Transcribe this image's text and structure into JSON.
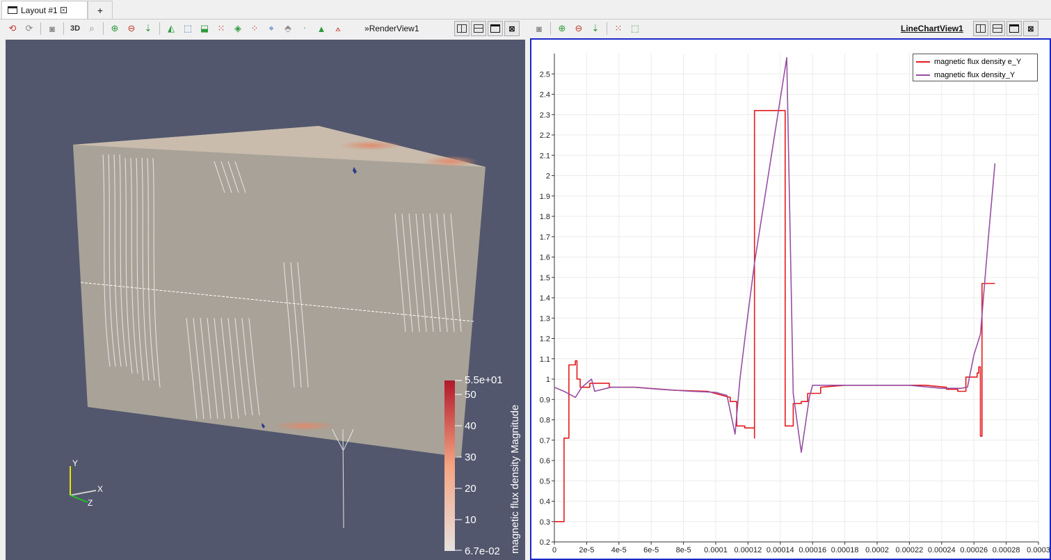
{
  "tabs": {
    "layout_label": "Layout #1",
    "add_label": "+"
  },
  "render_view": {
    "name": "RenderView1",
    "axes": {
      "x": "X",
      "y": "Y",
      "z": "Z"
    },
    "colorbar": {
      "title": "magnetic flux density Magnitude",
      "max_label": "5.5e+01",
      "min_label": "6.7e-02",
      "tick_labels": [
        "50",
        "40",
        "30",
        "20",
        "10"
      ],
      "colors": {
        "high": "#b2182b",
        "mid": "#f4a582",
        "low": "#e6e0de"
      }
    }
  },
  "line_chart_view": {
    "name": "LineChartView1"
  },
  "toolbar": {
    "threed_label": "3D",
    "more_label": "»"
  },
  "chart_data": {
    "type": "line",
    "x_ticks": [
      "0",
      "2e-5",
      "4e-5",
      "6e-5",
      "8e-5",
      "0.0001",
      "0.00012",
      "0.00014",
      "0.00016",
      "0.00018",
      "0.0002",
      "0.00022",
      "0.00024",
      "0.00026",
      "0.00028",
      "0.0003"
    ],
    "y_ticks": [
      "0.2",
      "0.3",
      "0.4",
      "0.5",
      "0.6",
      "0.7",
      "0.8",
      "0.9",
      "1",
      "1.1",
      "1.2",
      "1.3",
      "1.4",
      "1.5",
      "1.6",
      "1.7",
      "1.8",
      "1.9",
      "2",
      "2.1",
      "2.2",
      "2.3",
      "2.4",
      "2.5"
    ],
    "xlim": [
      0,
      0.0003
    ],
    "ylim": [
      0.2,
      2.6
    ],
    "grid": true,
    "legend_position": "top-right",
    "series": [
      {
        "name": "magnetic flux density e_Y",
        "color": "#e41a1c",
        "points": [
          [
            0,
            0.3
          ],
          [
            6e-06,
            0.3
          ],
          [
            6e-06,
            0.71
          ],
          [
            9e-06,
            0.71
          ],
          [
            9e-06,
            1.07
          ],
          [
            1.3e-05,
            1.07
          ],
          [
            1.3e-05,
            1.09
          ],
          [
            1.4e-05,
            1.09
          ],
          [
            1.4e-05,
            1.0
          ],
          [
            1.6e-05,
            1.0
          ],
          [
            1.6e-05,
            0.96
          ],
          [
            2.2e-05,
            0.96
          ],
          [
            2.2e-05,
            0.98
          ],
          [
            3.4e-05,
            0.98
          ],
          [
            3.4e-05,
            0.96
          ],
          [
            5e-05,
            0.96
          ],
          [
            7.5e-05,
            0.945
          ],
          [
            9.5e-05,
            0.94
          ],
          [
            0.000104,
            0.92
          ],
          [
            0.000109,
            0.91
          ],
          [
            0.000109,
            0.89
          ],
          [
            0.000113,
            0.89
          ],
          [
            0.000113,
            0.77
          ],
          [
            0.000118,
            0.77
          ],
          [
            0.000118,
            0.76
          ],
          [
            0.000124,
            0.76
          ],
          [
            0.000124,
            0.71
          ],
          [
            0.000124,
            2.32
          ],
          [
            0.000143,
            2.32
          ],
          [
            0.000143,
            0.77
          ],
          [
            0.000148,
            0.77
          ],
          [
            0.000148,
            0.88
          ],
          [
            0.000153,
            0.88
          ],
          [
            0.000153,
            0.89
          ],
          [
            0.000157,
            0.89
          ],
          [
            0.000157,
            0.93
          ],
          [
            0.000165,
            0.93
          ],
          [
            0.000165,
            0.96
          ],
          [
            0.00018,
            0.97
          ],
          [
            0.0002,
            0.97
          ],
          [
            0.00023,
            0.97
          ],
          [
            0.000243,
            0.96
          ],
          [
            0.000243,
            0.95
          ],
          [
            0.00025,
            0.95
          ],
          [
            0.00025,
            0.94
          ],
          [
            0.000255,
            0.94
          ],
          [
            0.000255,
            1.01
          ],
          [
            0.000262,
            1.01
          ],
          [
            0.000262,
            1.03
          ],
          [
            0.000263,
            1.03
          ],
          [
            0.000263,
            1.06
          ],
          [
            0.000264,
            1.06
          ],
          [
            0.000264,
            0.72
          ],
          [
            0.000265,
            0.72
          ],
          [
            0.000265,
            1.47
          ],
          [
            0.000273,
            1.47
          ]
        ]
      },
      {
        "name": "magnetic flux density_Y",
        "color": "#984ea3",
        "points": [
          [
            0,
            0.96
          ],
          [
            6e-06,
            0.94
          ],
          [
            1.3e-05,
            0.91
          ],
          [
            1.7e-05,
            0.96
          ],
          [
            2.3e-05,
            1.0
          ],
          [
            2.5e-05,
            0.94
          ],
          [
            3.5e-05,
            0.96
          ],
          [
            5e-05,
            0.96
          ],
          [
            6.5e-05,
            0.95
          ],
          [
            8.5e-05,
            0.94
          ],
          [
            0.0001,
            0.935
          ],
          [
            0.000107,
            0.92
          ],
          [
            0.000112,
            0.73
          ],
          [
            0.000115,
            1.0
          ],
          [
            0.000119,
            1.26
          ],
          [
            0.000124,
            1.57
          ],
          [
            0.000144,
            2.58
          ],
          [
            0.000148,
            0.93
          ],
          [
            0.000153,
            0.64
          ],
          [
            0.000158,
            0.91
          ],
          [
            0.00016,
            0.97
          ],
          [
            0.000175,
            0.97
          ],
          [
            0.0002,
            0.97
          ],
          [
            0.00022,
            0.97
          ],
          [
            0.00024,
            0.955
          ],
          [
            0.000252,
            0.955
          ],
          [
            0.000256,
            0.96
          ],
          [
            0.00026,
            1.12
          ],
          [
            0.000264,
            1.22
          ],
          [
            0.000269,
            1.7
          ],
          [
            0.000273,
            2.06
          ]
        ]
      }
    ]
  }
}
